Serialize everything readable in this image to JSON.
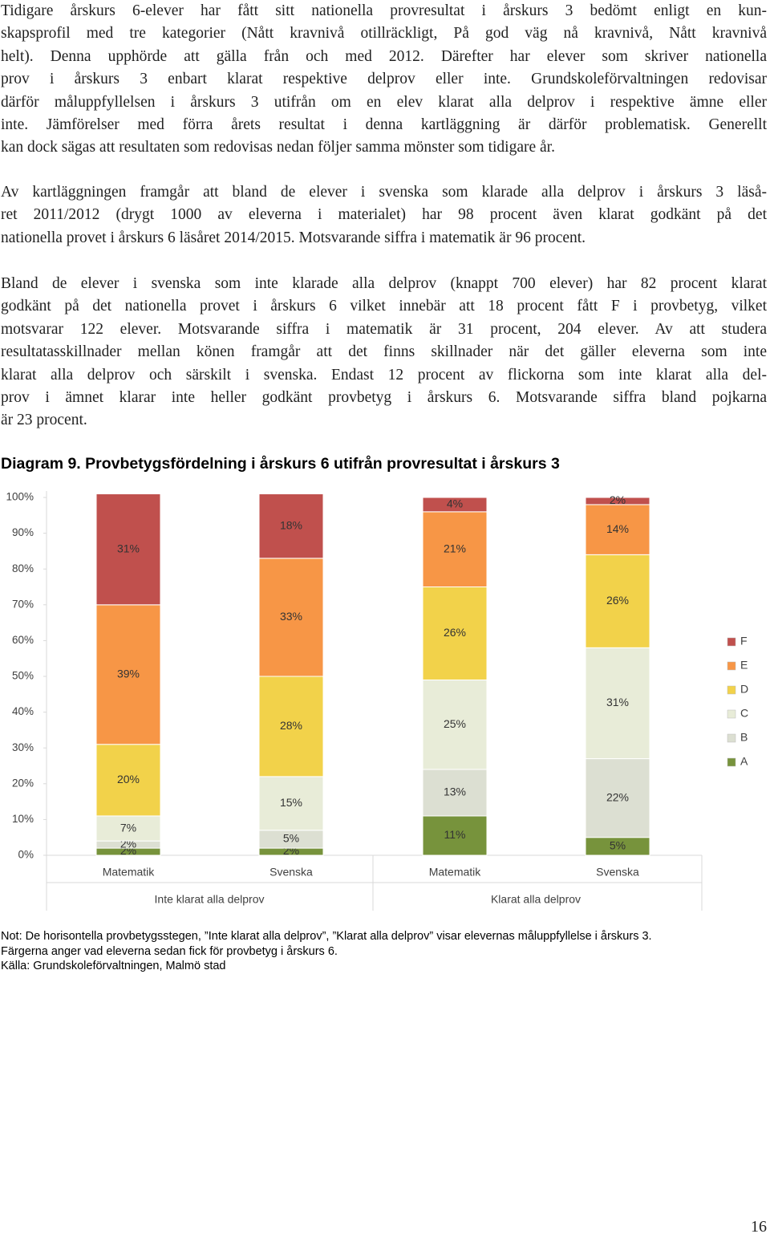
{
  "paragraphs": [
    {
      "lines": [
        "Tidigare årskurs 6-elever har fått sitt nationella provresultat i årskurs 3 bedömt enligt en kun-",
        "skapsprofil med tre kategorier (Nått kravnivå otillräckligt, På god väg nå kravnivå, Nått kravnivå",
        "helt). Denna upphörde att gälla från och med 2012. Därefter har elever som skriver nationella",
        "prov i årskurs 3 enbart klarat respektive delprov eller inte. Grundskoleförvaltningen redovisar",
        "därför måluppfyllelsen i årskurs 3 utifrån om en elev klarat alla delprov i respektive ämne eller",
        "inte. Jämförelser med förra årets resultat i denna kartläggning är därför problematisk. Generellt",
        "kan dock sägas att resultaten som redovisas nedan följer samma mönster som tidigare år."
      ]
    },
    {
      "lines": [
        "Av kartläggningen framgår att bland de elever i svenska som klarade alla delprov i årskurs 3 läså-",
        "ret 2011/2012 (drygt 1000 av eleverna i materialet) har 98 procent även klarat godkänt på det",
        "nationella provet i årskurs 6 läsåret 2014/2015. Motsvarande siffra i matematik är 96 procent."
      ]
    },
    {
      "lines": [
        "Bland de elever i svenska som inte klarade alla delprov (knappt 700 elever) har 82 procent klarat",
        "godkänt på det nationella provet i årskurs 6 vilket innebär att 18 procent fått F i provbetyg, vilket",
        "motsvarar 122 elever. Motsvarande siffra i matematik är 31 procent, 204 elever. Av att studera",
        "resultatasskillnader mellan könen framgår att det finns skillnader när det gäller eleverna som inte",
        "klarat alla delprov och särskilt i svenska. Endast 12 procent av flickorna som inte klarat alla del-",
        "prov i ämnet klarar inte heller godkänt provbetyg i årskurs 6. Motsvarande siffra bland pojkarna",
        "är 23 procent."
      ]
    }
  ],
  "chart_data": {
    "type": "stacked_bar",
    "title": "Diagram 9. Provbetygsfördelning i årskurs 6 utifrån provresultat i årskurs 3",
    "categories": [
      "Matematik",
      "Svenska",
      "Matematik",
      "Svenska"
    ],
    "group_labels": [
      "Inte klarat alla delprov",
      "Klarat alla delprov"
    ],
    "ylim": [
      0,
      100
    ],
    "yticks": [
      {
        "value": 0,
        "label": "0%"
      },
      {
        "value": 10,
        "label": "10%"
      },
      {
        "value": 20,
        "label": "20%"
      },
      {
        "value": 30,
        "label": "30%"
      },
      {
        "value": 40,
        "label": "40%"
      },
      {
        "value": 50,
        "label": "50%"
      },
      {
        "value": 60,
        "label": "60%"
      },
      {
        "value": 70,
        "label": "70%"
      },
      {
        "value": 80,
        "label": "80%"
      },
      {
        "value": 90,
        "label": "90%"
      },
      {
        "value": 100,
        "label": "100%"
      }
    ],
    "series": [
      {
        "name": "A",
        "color": "#77933c",
        "values": [
          2,
          2,
          11,
          5
        ],
        "value_labels": [
          "2%",
          "2%",
          "11%",
          "5%"
        ]
      },
      {
        "name": "B",
        "color": "#dcdfd2",
        "values": [
          2,
          5,
          13,
          22
        ],
        "value_labels": [
          "2%",
          "5%",
          "13%",
          "22%"
        ]
      },
      {
        "name": "C",
        "color": "#e8ecd8",
        "values": [
          7,
          15,
          25,
          31
        ],
        "value_labels": [
          "7%",
          "15%",
          "25%",
          "31%"
        ]
      },
      {
        "name": "D",
        "color": "#f2d24a",
        "values": [
          20,
          28,
          26,
          26
        ],
        "value_labels": [
          "20%",
          "28%",
          "26%",
          "26%"
        ]
      },
      {
        "name": "E",
        "color": "#f79646",
        "values": [
          39,
          33,
          21,
          14
        ],
        "value_labels": [
          "39%",
          "33%",
          "21%",
          "14%"
        ]
      },
      {
        "name": "F",
        "color": "#c0504d",
        "values": [
          31,
          18,
          4,
          2
        ],
        "value_labels": [
          "31%",
          "18%",
          "4%",
          "2%"
        ]
      }
    ]
  },
  "note": {
    "lines": [
      "Not: De horisontella provbetygsstegen, ”Inte klarat alla delprov”, ”Klarat alla delprov” visar elevernas måluppfyllelse i årskurs 3.",
      "Färgerna anger vad eleverna sedan fick för provbetyg i årskurs 6.",
      "Källa: Grundskoleförvaltningen, Malmö stad"
    ]
  },
  "page_number": "16"
}
